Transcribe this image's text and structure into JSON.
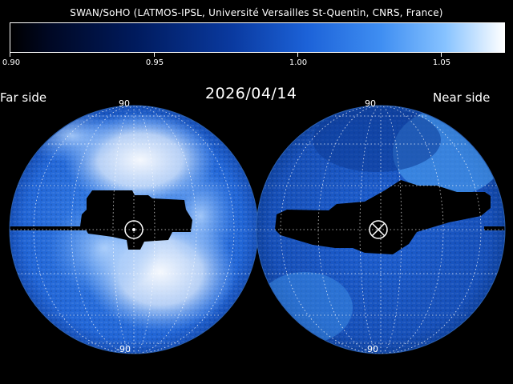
{
  "credit": "SWAN/SoHO (LATMOS-IPSL, Université Versailles St-Quentin, CNRS, France)",
  "colorbar": {
    "ticks": [
      "0.90",
      "0.95",
      "1.00",
      "1.05"
    ],
    "tick_values": [
      0.9,
      0.95,
      1.0,
      1.05
    ],
    "range": [
      0.9,
      1.072
    ]
  },
  "date": "2026/04/14",
  "labels": {
    "far_side": "Far side",
    "near_side": "Near side",
    "lat_top": "90",
    "lat_bottom": "-90"
  },
  "colors": {
    "background": "#000000",
    "map_base": "#1b5fd6",
    "bright": "#ffffff",
    "grid": "#ffffff"
  }
}
